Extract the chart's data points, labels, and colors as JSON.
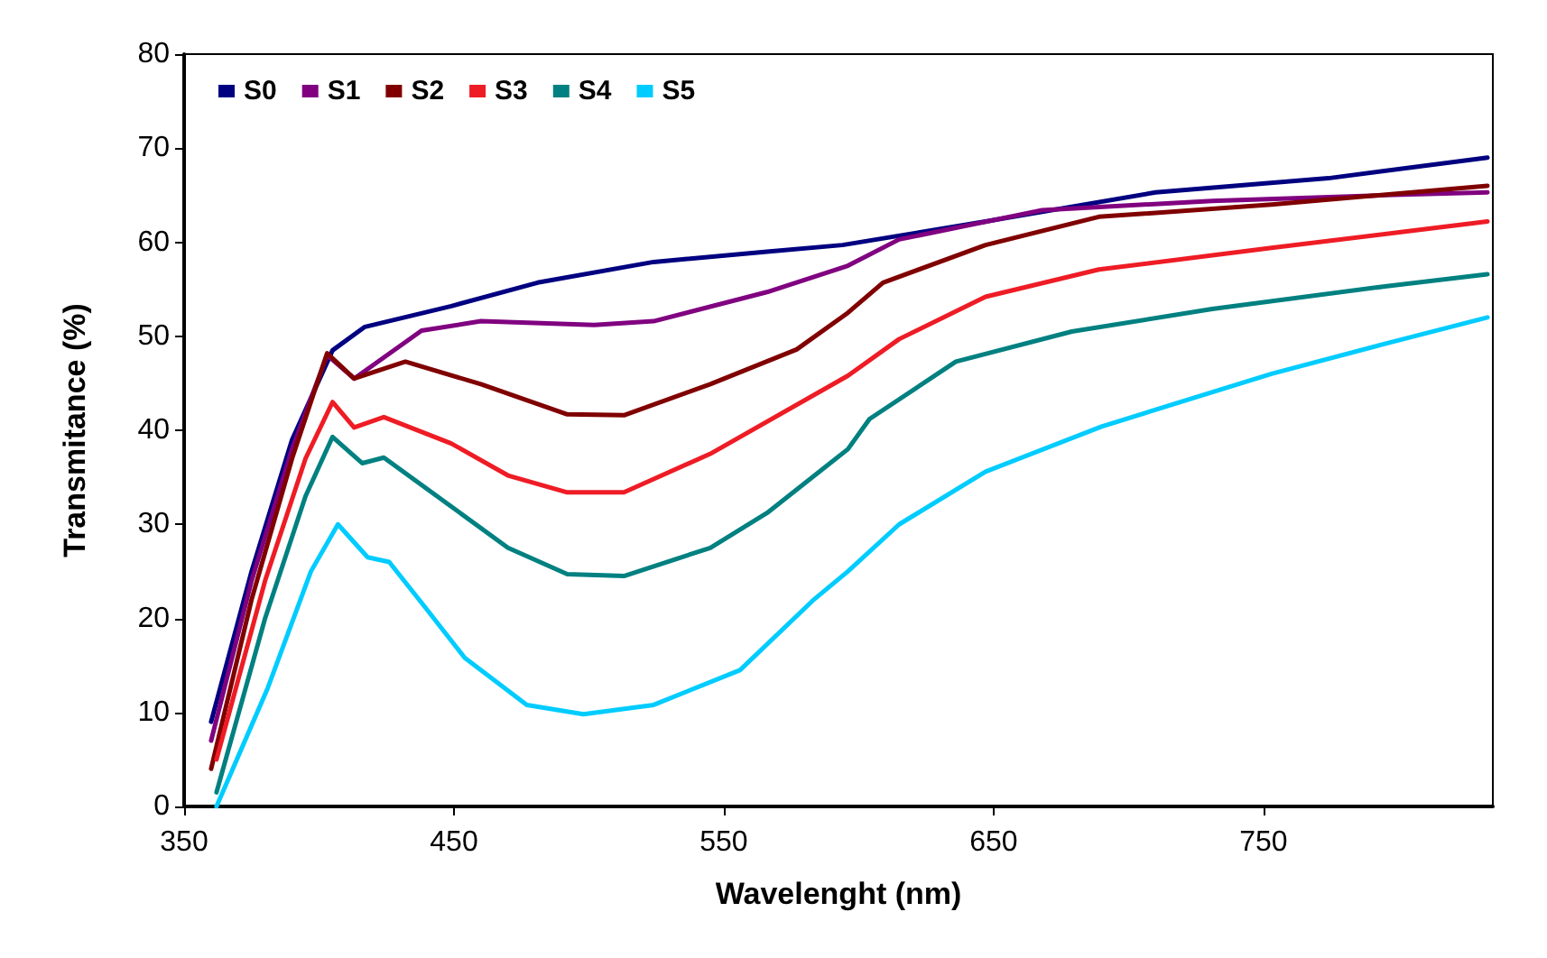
{
  "chart_data": {
    "type": "line",
    "xlabel": "Wavelenght (nm)",
    "ylabel": "Transmitance (%)",
    "xlim": [
      350,
      835
    ],
    "xticks": [
      350,
      450,
      550,
      650,
      750
    ],
    "ylim": [
      0,
      80
    ],
    "yticks": [
      0,
      10,
      20,
      30,
      40,
      50,
      60,
      70,
      80
    ],
    "grid": false,
    "legend": "top left",
    "marker": "none",
    "line_style": "solid",
    "series": [
      {
        "name": "S0",
        "color": "#000080",
        "x": [
          360,
          375,
          390,
          405,
          417,
          449,
          481,
          524,
          566,
          594,
          647,
          710,
          774,
          833
        ],
        "values": [
          9,
          25,
          39,
          48.5,
          51,
          53.2,
          55.7,
          57.9,
          59,
          59.7,
          62.2,
          65.3,
          66.8,
          69
        ]
      },
      {
        "name": "S1",
        "color": "#800080",
        "x": [
          360,
          375,
          390,
          403,
          413,
          438,
          460,
          502,
          524,
          566,
          596,
          615,
          668,
          731,
          795,
          833
        ],
        "values": [
          7,
          24,
          38,
          48,
          45.5,
          50.6,
          51.6,
          51.2,
          51.6,
          54.7,
          57.5,
          60.3,
          63.4,
          64.4,
          65,
          65.3
        ]
      },
      {
        "name": "S2",
        "color": "#800000",
        "x": [
          360,
          375,
          390,
          403,
          413,
          432,
          460,
          492,
          513,
          545,
          577,
          596,
          609,
          647,
          689,
          753,
          833
        ],
        "values": [
          4,
          22,
          37,
          48.2,
          45.5,
          47.3,
          44.9,
          41.7,
          41.6,
          44.9,
          48.6,
          52.5,
          55.7,
          59.7,
          62.7,
          64,
          66
        ]
      },
      {
        "name": "S3",
        "color": "#ee1c25",
        "x": [
          362,
          380,
          395,
          405,
          413,
          424,
          449,
          470,
          492,
          513,
          545,
          596,
          615,
          647,
          689,
          753,
          833
        ],
        "values": [
          5,
          24,
          37,
          43,
          40.3,
          41.4,
          38.6,
          35.2,
          33.4,
          33.4,
          37.5,
          45.8,
          49.7,
          54.2,
          57.1,
          59.4,
          62.2
        ]
      },
      {
        "name": "S4",
        "color": "#008080",
        "x": [
          362,
          380,
          395,
          405,
          416,
          424,
          449,
          470,
          492,
          513,
          545,
          566,
          596,
          604,
          636,
          679,
          731,
          795,
          833
        ],
        "values": [
          1.5,
          20,
          33,
          39.3,
          36.5,
          37.1,
          31.9,
          27.5,
          24.7,
          24.5,
          27.5,
          31.2,
          38,
          41.2,
          47.3,
          50.5,
          52.9,
          55.3,
          56.6
        ]
      },
      {
        "name": "S5",
        "color": "#00ccff",
        "x": [
          362,
          381,
          397,
          407,
          418,
          426,
          439,
          454,
          477,
          498,
          524,
          556,
          583,
          596,
          615,
          647,
          690,
          753,
          795,
          833
        ],
        "values": [
          0,
          12.6,
          25,
          30,
          26.5,
          26,
          21.3,
          15.8,
          10.8,
          9.8,
          10.8,
          14.5,
          21.9,
          25,
          30,
          35.6,
          40.4,
          46,
          49.2,
          52
        ]
      }
    ]
  }
}
